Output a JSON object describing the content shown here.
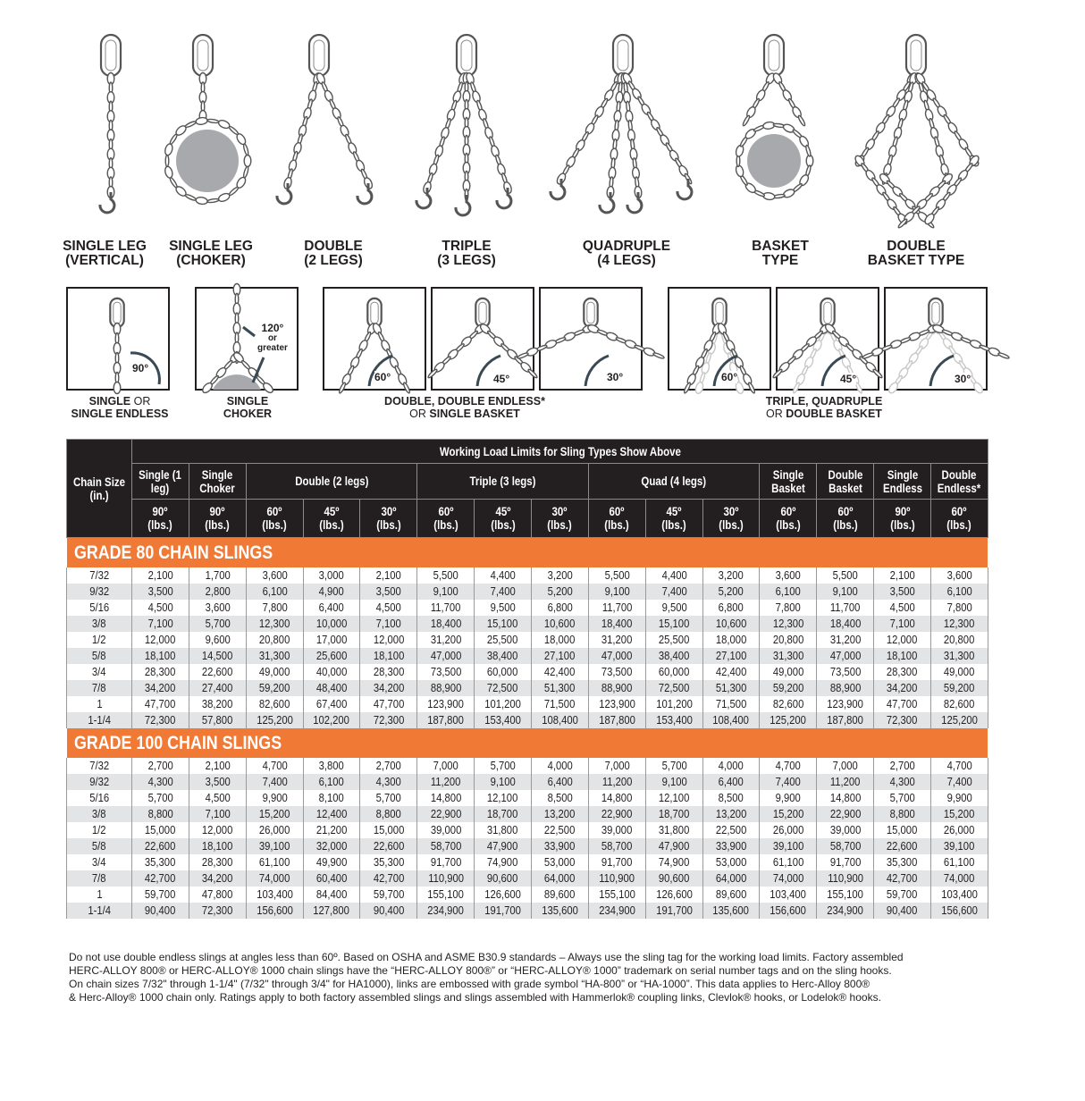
{
  "sling_types": [
    {
      "line1": "SINGLE LEG",
      "line2": "(VERTICAL)"
    },
    {
      "line1": "SINGLE LEG",
      "line2": "(CHOKER)"
    },
    {
      "line1": "DOUBLE",
      "line2": "(2 LEGS)"
    },
    {
      "line1": "TRIPLE",
      "line2": "(3 LEGS)"
    },
    {
      "line1": "QUADRUPLE",
      "line2": "(4 LEGS)"
    },
    {
      "line1": "BASKET",
      "line2": "TYPE"
    },
    {
      "line1": "DOUBLE",
      "line2": "BASKET TYPE"
    }
  ],
  "angle_diagrams": {
    "angles": [
      "90°",
      "120°",
      "60°",
      "45°",
      "30°",
      "60°",
      "45°",
      "30°"
    ],
    "choker_note_1": "or",
    "choker_note_2": "greater",
    "captions": [
      {
        "a": "SINGLE",
        "b": " OR",
        "c": "SINGLE ENDLESS"
      },
      {
        "a": "SINGLE",
        "b": "",
        "c": "CHOKER"
      },
      {
        "a": "DOUBLE, DOUBLE ENDLESS*",
        "b": "",
        "c_thin": "OR ",
        "c": "SINGLE BASKET"
      },
      {
        "a": "TRIPLE, QUADRUPLE",
        "b": "",
        "c_thin": "OR ",
        "c": "DOUBLE BASKET"
      }
    ]
  },
  "table": {
    "title": "Working Load Limits for Sling Types Show Above",
    "chain_size_header": "Chain Size (in.)",
    "groups": [
      "Single (1 leg)",
      "Single Choker",
      "Double (2 legs)",
      "Triple (3 legs)",
      "Quad (4 legs)",
      "Single Basket",
      "Double Basket",
      "Single Endless",
      "Double Endless*"
    ],
    "angle_headers": [
      "90º (lbs.)",
      "90º (lbs.)",
      "60º (lbs.)",
      "45º (lbs.)",
      "30º (lbs.)",
      "60º (lbs.)",
      "45º (lbs.)",
      "30º (lbs.)",
      "60º (lbs.)",
      "45º (lbs.)",
      "30º (lbs.)",
      "60º (lbs.)",
      "60º (lbs.)",
      "90º (lbs.)",
      "60º (lbs.)"
    ],
    "header_color": "#231f20",
    "grade_color": "#f07a35",
    "sections": [
      {
        "title": "GRADE 80 CHAIN SLINGS",
        "rows": [
          [
            "7/32",
            "2,100",
            "1,700",
            "3,600",
            "3,000",
            "2,100",
            "5,500",
            "4,400",
            "3,200",
            "5,500",
            "4,400",
            "3,200",
            "3,600",
            "5,500",
            "2,100",
            "3,600"
          ],
          [
            "9/32",
            "3,500",
            "2,800",
            "6,100",
            "4,900",
            "3,500",
            "9,100",
            "7,400",
            "5,200",
            "9,100",
            "7,400",
            "5,200",
            "6,100",
            "9,100",
            "3,500",
            "6,100"
          ],
          [
            "5/16",
            "4,500",
            "3,600",
            "7,800",
            "6,400",
            "4,500",
            "11,700",
            "9,500",
            "6,800",
            "11,700",
            "9,500",
            "6,800",
            "7,800",
            "11,700",
            "4,500",
            "7,800"
          ],
          [
            "3/8",
            "7,100",
            "5,700",
            "12,300",
            "10,000",
            "7,100",
            "18,400",
            "15,100",
            "10,600",
            "18,400",
            "15,100",
            "10,600",
            "12,300",
            "18,400",
            "7,100",
            "12,300"
          ],
          [
            "1/2",
            "12,000",
            "9,600",
            "20,800",
            "17,000",
            "12,000",
            "31,200",
            "25,500",
            "18,000",
            "31,200",
            "25,500",
            "18,000",
            "20,800",
            "31,200",
            "12,000",
            "20,800"
          ],
          [
            "5/8",
            "18,100",
            "14,500",
            "31,300",
            "25,600",
            "18,100",
            "47,000",
            "38,400",
            "27,100",
            "47,000",
            "38,400",
            "27,100",
            "31,300",
            "47,000",
            "18,100",
            "31,300"
          ],
          [
            "3/4",
            "28,300",
            "22,600",
            "49,000",
            "40,000",
            "28,300",
            "73,500",
            "60,000",
            "42,400",
            "73,500",
            "60,000",
            "42,400",
            "49,000",
            "73,500",
            "28,300",
            "49,000"
          ],
          [
            "7/8",
            "34,200",
            "27,400",
            "59,200",
            "48,400",
            "34,200",
            "88,900",
            "72,500",
            "51,300",
            "88,900",
            "72,500",
            "51,300",
            "59,200",
            "88,900",
            "34,200",
            "59,200"
          ],
          [
            "1",
            "47,700",
            "38,200",
            "82,600",
            "67,400",
            "47,700",
            "123,900",
            "101,200",
            "71,500",
            "123,900",
            "101,200",
            "71,500",
            "82,600",
            "123,900",
            "47,700",
            "82,600"
          ],
          [
            "1-1/4",
            "72,300",
            "57,800",
            "125,200",
            "102,200",
            "72,300",
            "187,800",
            "153,400",
            "108,400",
            "187,800",
            "153,400",
            "108,400",
            "125,200",
            "187,800",
            "72,300",
            "125,200"
          ]
        ]
      },
      {
        "title": "GRADE 100 CHAIN SLINGS",
        "rows": [
          [
            "7/32",
            "2,700",
            "2,100",
            "4,700",
            "3,800",
            "2,700",
            "7,000",
            "5,700",
            "4,000",
            "7,000",
            "5,700",
            "4,000",
            "4,700",
            "7,000",
            "2,700",
            "4,700"
          ],
          [
            "9/32",
            "4,300",
            "3,500",
            "7,400",
            "6,100",
            "4,300",
            "11,200",
            "9,100",
            "6,400",
            "11,200",
            "9,100",
            "6,400",
            "7,400",
            "11,200",
            "4,300",
            "7,400"
          ],
          [
            "5/16",
            "5,700",
            "4,500",
            "9,900",
            "8,100",
            "5,700",
            "14,800",
            "12,100",
            "8,500",
            "14,800",
            "12,100",
            "8,500",
            "9,900",
            "14,800",
            "5,700",
            "9,900"
          ],
          [
            "3/8",
            "8,800",
            "7,100",
            "15,200",
            "12,400",
            "8,800",
            "22,900",
            "18,700",
            "13,200",
            "22,900",
            "18,700",
            "13,200",
            "15,200",
            "22,900",
            "8,800",
            "15,200"
          ],
          [
            "1/2",
            "15,000",
            "12,000",
            "26,000",
            "21,200",
            "15,000",
            "39,000",
            "31,800",
            "22,500",
            "39,000",
            "31,800",
            "22,500",
            "26,000",
            "39,000",
            "15,000",
            "26,000"
          ],
          [
            "5/8",
            "22,600",
            "18,100",
            "39,100",
            "32,000",
            "22,600",
            "58,700",
            "47,900",
            "33,900",
            "58,700",
            "47,900",
            "33,900",
            "39,100",
            "58,700",
            "22,600",
            "39,100"
          ],
          [
            "3/4",
            "35,300",
            "28,300",
            "61,100",
            "49,900",
            "35,300",
            "91,700",
            "74,900",
            "53,000",
            "91,700",
            "74,900",
            "53,000",
            "61,100",
            "91,700",
            "35,300",
            "61,100"
          ],
          [
            "7/8",
            "42,700",
            "34,200",
            "74,000",
            "60,400",
            "42,700",
            "110,900",
            "90,600",
            "64,000",
            "110,900",
            "90,600",
            "64,000",
            "74,000",
            "110,900",
            "42,700",
            "74,000"
          ],
          [
            "1",
            "59,700",
            "47,800",
            "103,400",
            "84,400",
            "59,700",
            "155,100",
            "126,600",
            "89,600",
            "155,100",
            "126,600",
            "89,600",
            "103,400",
            "155,100",
            "59,700",
            "103,400"
          ],
          [
            "1-1/4",
            "90,400",
            "72,300",
            "156,600",
            "127,800",
            "90,400",
            "234,900",
            "191,700",
            "135,600",
            "234,900",
            "191,700",
            "135,600",
            "156,600",
            "234,900",
            "90,400",
            "156,600"
          ]
        ]
      }
    ]
  },
  "notes": [
    "Do not use double endless slings at angles less than 60º. Based on OSHA and ASME B30.9 standards – Always use the sling tag for the working load limits. Factory assembled",
    "HERC-ALLOY 800® or HERC-ALLOY® 1000 chain slings have the “HERC-ALLOY 800®” or “HERC-ALLOY® 1000” trademark on serial number tags and on the sling hooks.",
    "On chain sizes 7/32\" through 1-1/4\" (7/32\" through 3/4\" for HA1000), links are embossed with grade symbol “HA-800” or “HA-1000”. This data applies to Herc-Alloy 800®",
    "& Herc-Alloy® 1000 chain only. Ratings apply to both factory assembled slings and slings assembled with Hammerlok® coupling links, Clevlok® hooks, or Lodelok® hooks."
  ]
}
